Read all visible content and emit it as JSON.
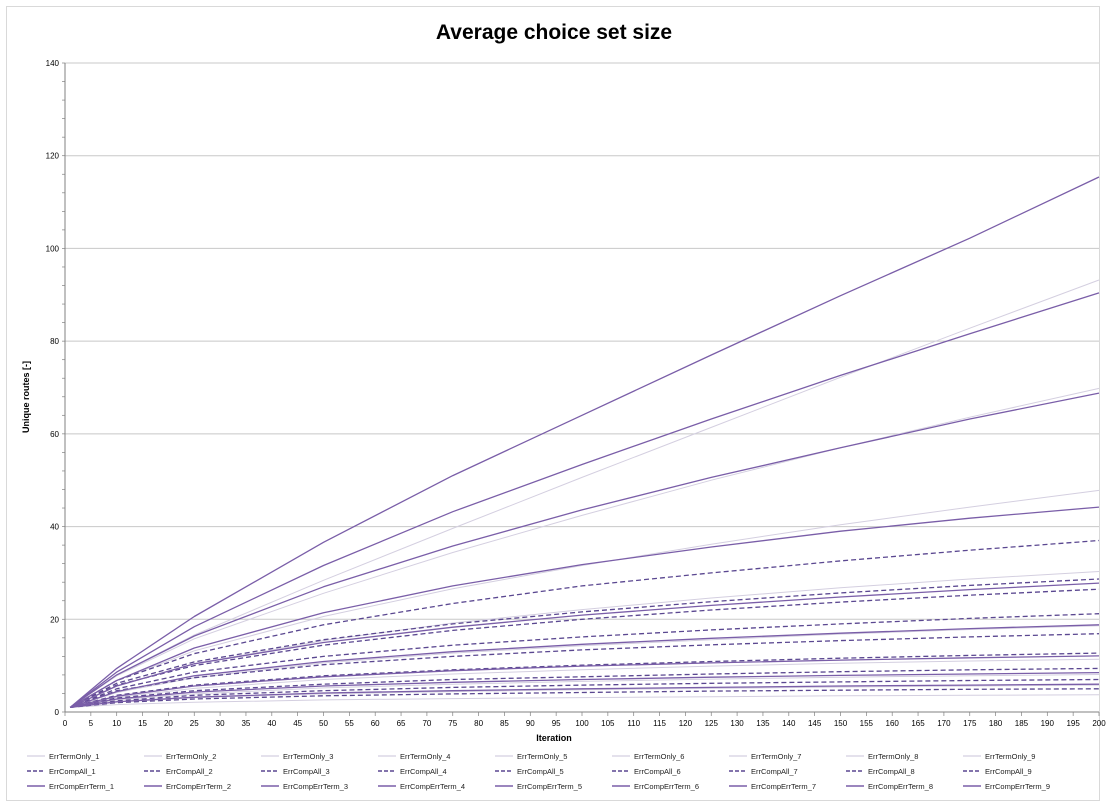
{
  "chart_data": {
    "type": "line",
    "title": "Average choice set size",
    "xlabel": "Iteration",
    "ylabel": "Unique routes [-]",
    "xlim": [
      0,
      200
    ],
    "ylim": [
      0,
      140
    ],
    "x_ticks": [
      0,
      5,
      10,
      15,
      20,
      25,
      30,
      35,
      40,
      45,
      50,
      55,
      60,
      65,
      70,
      75,
      80,
      85,
      90,
      95,
      100,
      105,
      110,
      115,
      120,
      125,
      130,
      135,
      140,
      145,
      150,
      155,
      160,
      165,
      170,
      175,
      180,
      185,
      190,
      195,
      200
    ],
    "y_ticks": [
      0,
      20,
      40,
      60,
      80,
      100,
      120,
      140
    ],
    "grid": "horizontal",
    "legend_position": "bottom",
    "x": [
      1,
      10,
      25,
      50,
      75,
      100,
      125,
      150,
      175,
      200
    ],
    "series": [
      {
        "name": "ErrTermOnly_1",
        "group": "ErrTermOnly",
        "values": [
          1,
          1.6,
          2.1,
          2.6,
          2.9,
          3.1,
          3.3,
          3.5,
          3.6,
          3.7
        ]
      },
      {
        "name": "ErrTermOnly_2",
        "group": "ErrTermOnly",
        "values": [
          1,
          2.2,
          3.1,
          3.9,
          4.4,
          4.8,
          5.1,
          5.4,
          5.6,
          5.8
        ]
      },
      {
        "name": "ErrTermOnly_3",
        "group": "ErrTermOnly",
        "values": [
          1,
          2.6,
          3.9,
          5.2,
          6.0,
          6.6,
          7.1,
          7.5,
          7.8,
          8.1
        ]
      },
      {
        "name": "ErrTermOnly_4",
        "group": "ErrTermOnly",
        "values": [
          1,
          3.2,
          5.1,
          7.0,
          8.2,
          9.1,
          9.9,
          10.5,
          11.0,
          11.4
        ]
      },
      {
        "name": "ErrTermOnly_5",
        "group": "ErrTermOnly",
        "values": [
          1,
          4.2,
          7.4,
          10.6,
          12.7,
          14.3,
          15.6,
          16.8,
          17.8,
          18.6
        ]
      },
      {
        "name": "ErrTermOnly_6",
        "group": "ErrTermOnly",
        "values": [
          1,
          5.6,
          10.4,
          15.4,
          19.2,
          22.1,
          24.6,
          26.8,
          28.7,
          30.3
        ]
      },
      {
        "name": "ErrTermOnly_7",
        "group": "ErrTermOnly",
        "values": [
          1,
          6.8,
          13.2,
          20.6,
          26.6,
          31.6,
          36.2,
          40.4,
          44.2,
          47.8
        ]
      },
      {
        "name": "ErrTermOnly_8",
        "group": "ErrTermOnly",
        "values": [
          1,
          7.8,
          15.8,
          25.6,
          34.4,
          42.4,
          50.0,
          57.0,
          63.6,
          69.8
        ]
      },
      {
        "name": "ErrTermOnly_9",
        "group": "ErrTermOnly",
        "values": [
          1,
          8.0,
          16.6,
          28.4,
          39.6,
          50.6,
          61.4,
          72.2,
          82.8,
          93.2
        ]
      },
      {
        "name": "ErrCompAll_1",
        "group": "ErrCompAll",
        "values": [
          1,
          2.0,
          2.8,
          3.5,
          3.9,
          4.2,
          4.5,
          4.7,
          4.9,
          5.0
        ]
      },
      {
        "name": "ErrCompAll_2",
        "group": "ErrCompAll",
        "values": [
          1,
          2.4,
          3.6,
          4.6,
          5.3,
          5.8,
          6.2,
          6.5,
          6.8,
          7.0
        ]
      },
      {
        "name": "ErrCompAll_3",
        "group": "ErrCompAll",
        "values": [
          1,
          3.0,
          4.6,
          6.0,
          7.0,
          7.6,
          8.2,
          8.7,
          9.1,
          9.4
        ]
      },
      {
        "name": "ErrCompAll_4",
        "group": "ErrCompAll",
        "values": [
          1,
          3.6,
          5.8,
          7.8,
          9.1,
          10.1,
          10.9,
          11.6,
          12.2,
          12.7
        ]
      },
      {
        "name": "ErrCompAll_5",
        "group": "ErrCompAll",
        "values": [
          1,
          4.6,
          7.4,
          10.2,
          12.0,
          13.4,
          14.5,
          15.4,
          16.2,
          16.9
        ]
      },
      {
        "name": "ErrCompAll_6",
        "group": "ErrCompAll",
        "values": [
          1,
          5.0,
          8.6,
          12.0,
          14.4,
          16.2,
          17.7,
          19.0,
          20.2,
          21.2
        ]
      },
      {
        "name": "ErrCompAll_7",
        "group": "ErrCompAll",
        "values": [
          1,
          5.8,
          10.0,
          14.4,
          17.6,
          20.0,
          22.0,
          23.7,
          25.2,
          26.5
        ]
      },
      {
        "name": "ErrCompAll_8",
        "group": "ErrCompAll",
        "values": [
          1,
          6.2,
          10.8,
          15.6,
          19.0,
          21.6,
          23.8,
          25.7,
          27.3,
          28.7
        ]
      },
      {
        "name": "ErrCompAll_9",
        "group": "ErrCompAll",
        "values": [
          1,
          6.8,
          12.6,
          18.8,
          23.4,
          27.2,
          30.0,
          32.6,
          34.9,
          37.0
        ]
      },
      {
        "name": "ErrCompErrTerm_1",
        "group": "ErrCompErrTerm",
        "values": [
          1,
          2.2,
          3.2,
          4.1,
          4.6,
          5.0,
          5.3,
          5.6,
          5.8,
          6.0
        ]
      },
      {
        "name": "ErrCompErrTerm_2",
        "group": "ErrCompErrTerm",
        "values": [
          1,
          2.8,
          4.3,
          5.6,
          6.4,
          7.0,
          7.5,
          7.9,
          8.2,
          8.5
        ]
      },
      {
        "name": "ErrCompErrTerm_3",
        "group": "ErrCompErrTerm",
        "values": [
          1,
          3.4,
          5.6,
          7.6,
          8.9,
          9.9,
          10.6,
          11.2,
          11.7,
          12.1
        ]
      },
      {
        "name": "ErrCompErrTerm_4",
        "group": "ErrCompErrTerm",
        "values": [
          1,
          4.4,
          7.8,
          10.9,
          13.0,
          14.6,
          15.9,
          17.0,
          18.0,
          18.8
        ]
      },
      {
        "name": "ErrCompErrTerm_5",
        "group": "ErrCompErrTerm",
        "values": [
          1,
          5.6,
          10.4,
          15.0,
          18.3,
          20.9,
          23.0,
          24.8,
          26.4,
          27.8
        ]
      },
      {
        "name": "ErrCompErrTerm_6",
        "group": "ErrCompErrTerm",
        "values": [
          1,
          6.8,
          13.8,
          21.4,
          27.2,
          31.8,
          35.6,
          39.0,
          41.8,
          44.2
        ]
      },
      {
        "name": "ErrCompErrTerm_7",
        "group": "ErrCompErrTerm",
        "values": [
          1,
          8.0,
          16.4,
          27.0,
          35.8,
          43.6,
          50.6,
          57.0,
          63.2,
          68.8
        ]
      },
      {
        "name": "ErrCompErrTerm_8",
        "group": "ErrCompErrTerm",
        "values": [
          1,
          8.6,
          18.4,
          31.6,
          43.2,
          53.4,
          63.2,
          72.6,
          81.6,
          90.4
        ]
      },
      {
        "name": "ErrCompErrTerm_9",
        "group": "ErrCompErrTerm",
        "values": [
          1,
          9.4,
          20.6,
          36.6,
          51.0,
          64.0,
          77.0,
          89.8,
          102.2,
          115.4
        ]
      }
    ],
    "colors": {
      "ErrTermOnly": "#d4cfe0",
      "ErrCompAll": "#5a4790",
      "ErrCompErrTerm": "#7a5ea8",
      "grid": "#c8c8c8",
      "axis": "#808080"
    }
  }
}
